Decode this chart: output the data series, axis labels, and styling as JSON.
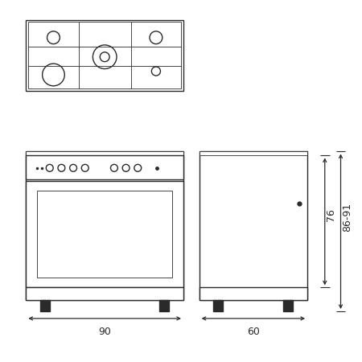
{
  "bg_color": "#ffffff",
  "line_color": "#2a2a2a",
  "lw": 1.0,
  "thin_lw": 0.6,
  "front_dim": "90",
  "side_dim": "60",
  "dim_76_label": "76",
  "dim_8691_label": "86-91"
}
